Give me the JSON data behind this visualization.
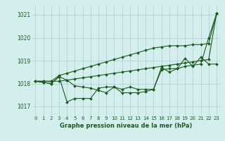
{
  "title": "Graphe pression niveau de la mer (hPa)",
  "bg_color": "#d4eeee",
  "grid_color": "#aecccc",
  "line_color": "#1a5c1a",
  "marker_color": "#1a5c1a",
  "ylim": [
    1016.6,
    1021.4
  ],
  "yticks": [
    1017,
    1018,
    1019,
    1020,
    1021
  ],
  "xticks": [
    0,
    1,
    2,
    3,
    4,
    5,
    6,
    7,
    8,
    9,
    10,
    11,
    12,
    13,
    14,
    15,
    16,
    17,
    18,
    19,
    20,
    21,
    22,
    23
  ],
  "series": {
    "line_zigzag": [
      1018.1,
      1018.05,
      1018.0,
      1018.3,
      1017.2,
      1017.35,
      1017.35,
      1017.35,
      1017.8,
      1017.85,
      1017.85,
      1017.75,
      1017.85,
      1017.75,
      1017.75,
      1017.75,
      1018.6,
      1018.65,
      1018.65,
      1019.1,
      1018.75,
      1019.15,
      1018.85,
      1018.85
    ],
    "line_mid": [
      1018.1,
      1018.05,
      1018.0,
      1018.3,
      1018.15,
      1017.9,
      1017.85,
      1017.8,
      1017.7,
      1017.6,
      1017.85,
      1017.6,
      1017.6,
      1017.6,
      1017.65,
      1017.75,
      1018.7,
      1018.5,
      1018.65,
      1018.75,
      1018.8,
      1018.85,
      1020.0,
      1021.05
    ],
    "line_ramp1": [
      1018.1,
      1018.1,
      1018.1,
      1018.35,
      1018.45,
      1018.55,
      1018.65,
      1018.75,
      1018.85,
      1018.95,
      1019.05,
      1019.15,
      1019.25,
      1019.35,
      1019.45,
      1019.55,
      1019.6,
      1019.65,
      1019.65,
      1019.65,
      1019.7,
      1019.7,
      1019.75,
      1021.05
    ],
    "line_ramp2": [
      1018.1,
      1018.1,
      1018.1,
      1018.1,
      1018.15,
      1018.2,
      1018.25,
      1018.3,
      1018.35,
      1018.4,
      1018.45,
      1018.5,
      1018.55,
      1018.6,
      1018.65,
      1018.7,
      1018.75,
      1018.8,
      1018.85,
      1018.9,
      1018.95,
      1019.0,
      1019.05,
      1021.05
    ]
  }
}
